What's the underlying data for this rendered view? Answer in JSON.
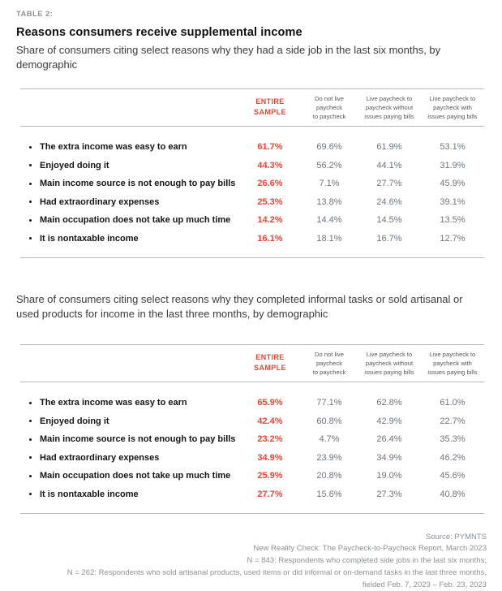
{
  "colors": {
    "accent": "#ee4333",
    "text_dark": "#141519",
    "text_gray": "#6f747c",
    "rule_gray": "#b9b9b9",
    "footer_gray": "#8c9096"
  },
  "header": {
    "table_label": "TABLE 2:",
    "title": "Reasons consumers receive supplemental income",
    "subtitle1": "Share of consumers citing select reasons why they had a side job in the last six months, by demographic",
    "subtitle2": "Share of consumers citing select reasons why they completed informal tasks or sold artisanal or used products for income in the last three months, by demographic"
  },
  "table_columns": {
    "entire_sample": [
      "ENTIRE",
      "SAMPLE"
    ],
    "col2": [
      "Do not live",
      "paycheck",
      "to paycheck"
    ],
    "col3": [
      "Live paycheck to",
      "paycheck without",
      "issues paying bills"
    ],
    "col4": [
      "Live paycheck to",
      "paycheck with",
      "issues paying bills"
    ]
  },
  "tables": [
    {
      "rows": [
        {
          "label": "The extra income was easy to earn",
          "values": [
            "61.7%",
            "69.6%",
            "61.9%",
            "53.1%"
          ]
        },
        {
          "label": "Enjoyed doing it",
          "values": [
            "44.3%",
            "56.2%",
            "44.1%",
            "31.9%"
          ]
        },
        {
          "label": "Main income source is not enough to pay bills",
          "values": [
            "26.6%",
            "7.1%",
            "27.7%",
            "45.9%"
          ]
        },
        {
          "label": "Had extraordinary expenses",
          "values": [
            "25.3%",
            "13.8%",
            "24.6%",
            "39.1%"
          ]
        },
        {
          "label": "Main occupation does not take up much time",
          "values": [
            "14.2%",
            "14.4%",
            "14.5%",
            "13.5%"
          ]
        },
        {
          "label": "It is nontaxable income",
          "values": [
            "16.1%",
            "18.1%",
            "16.7%",
            "12.7%"
          ]
        }
      ]
    },
    {
      "rows": [
        {
          "label": "The extra income was easy to earn",
          "values": [
            "65.9%",
            "77.1%",
            "62.8%",
            "61.0%"
          ]
        },
        {
          "label": "Enjoyed doing it",
          "values": [
            "42.4%",
            "60.8%",
            "42.9%",
            "22.7%"
          ]
        },
        {
          "label": "Main income source is not enough to pay bills",
          "values": [
            "23.2%",
            "4.7%",
            "26.4%",
            "35.3%"
          ]
        },
        {
          "label": "Had extraordinary expenses",
          "values": [
            "34.9%",
            "23.9%",
            "34.9%",
            "46.2%"
          ]
        },
        {
          "label": "Main occupation does not take up much time",
          "values": [
            "25.9%",
            "20.8%",
            "19.0%",
            "45.6%"
          ]
        },
        {
          "label": "It is nontaxable income",
          "values": [
            "27.7%",
            "15.6%",
            "27.3%",
            "40.8%"
          ]
        }
      ]
    }
  ],
  "chart_data": [
    {
      "type": "table",
      "title": "Reasons consumers receive supplemental income",
      "subtitle": "Share of consumers citing select reasons why they had a side job in the last six months, by demographic",
      "columns": [
        "ENTIRE SAMPLE",
        "Do not live paycheck to paycheck",
        "Live paycheck to paycheck without issues paying bills",
        "Live paycheck to paycheck with issues paying bills"
      ],
      "rows": [
        {
          "label": "The extra income was easy to earn",
          "values": [
            61.7,
            69.6,
            61.9,
            53.1
          ]
        },
        {
          "label": "Enjoyed doing it",
          "values": [
            44.3,
            56.2,
            44.1,
            31.9
          ]
        },
        {
          "label": "Main income source is not enough to pay bills",
          "values": [
            26.6,
            7.1,
            27.7,
            45.9
          ]
        },
        {
          "label": "Had extraordinary expenses",
          "values": [
            25.3,
            13.8,
            24.6,
            39.1
          ]
        },
        {
          "label": "Main occupation does not take up much time",
          "values": [
            14.2,
            14.4,
            14.5,
            13.5
          ]
        },
        {
          "label": "It is nontaxable income",
          "values": [
            16.1,
            18.1,
            16.7,
            12.7
          ]
        }
      ]
    },
    {
      "type": "table",
      "subtitle": "Share of consumers citing select reasons why they completed informal tasks or sold artisanal or used products for income in the last three months, by demographic",
      "columns": [
        "ENTIRE SAMPLE",
        "Do not live paycheck to paycheck",
        "Live paycheck to paycheck without issues paying bills",
        "Live paycheck to paycheck with issues paying bills"
      ],
      "rows": [
        {
          "label": "The extra income was easy to earn",
          "values": [
            65.9,
            77.1,
            62.8,
            61.0
          ]
        },
        {
          "label": "Enjoyed doing it",
          "values": [
            42.4,
            60.8,
            42.9,
            22.7
          ]
        },
        {
          "label": "Main income source is not enough to pay bills",
          "values": [
            23.2,
            4.7,
            26.4,
            35.3
          ]
        },
        {
          "label": "Had extraordinary expenses",
          "values": [
            34.9,
            23.9,
            34.9,
            46.2
          ]
        },
        {
          "label": "Main occupation does not take up much time",
          "values": [
            25.9,
            20.8,
            19.0,
            45.6
          ]
        },
        {
          "label": "It is nontaxable income",
          "values": [
            27.7,
            15.6,
            27.3,
            40.8
          ]
        }
      ]
    }
  ],
  "footer": {
    "lines": [
      "Source: PYMNTS",
      "New Reality Check: The Paycheck-to-Paycheck Report, March 2023",
      "N = 843: Respondents who completed side jobs in the last six months;",
      "N = 262: Respondents who sold artisanal products, used items or did informal or on-demand tasks in the last three months,",
      "fielded Feb. 7, 2023 – Feb. 23, 2023"
    ]
  }
}
